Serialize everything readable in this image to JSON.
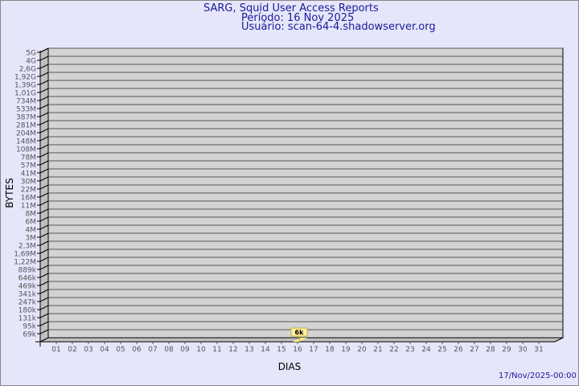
{
  "header": {
    "title": "SARG, Squid User Access Reports",
    "period": "Período: 16 Nov 2025",
    "user": "Usuário: scan-64-4.shadowserver.org"
  },
  "footer": {
    "generated": "17/Nov/2025-00:00"
  },
  "colors": {
    "background": "#e6e6fa",
    "wall": "#d3d3d3",
    "bar": "#ffe888",
    "title": "#1a1a9a"
  },
  "chart_data": {
    "type": "bar",
    "xlabel": "DIAS",
    "ylabel": "BYTES",
    "y_scale": "log",
    "y_tick_labels": [
      "5G",
      "4G",
      "2,6G",
      "1,92G",
      "1,39G",
      "1,01G",
      "734M",
      "533M",
      "387M",
      "281M",
      "204M",
      "148M",
      "108M",
      "78M",
      "57M",
      "41M",
      "30M",
      "22M",
      "16M",
      "11M",
      "8M",
      "6M",
      "4M",
      "3M",
      "2,3M",
      "1,69M",
      "1,22M",
      "889k",
      "646k",
      "469k",
      "341k",
      "247k",
      "180k",
      "131k",
      "95k",
      "69k"
    ],
    "categories": [
      "01",
      "02",
      "03",
      "04",
      "05",
      "06",
      "07",
      "08",
      "09",
      "10",
      "11",
      "12",
      "13",
      "14",
      "15",
      "16",
      "17",
      "18",
      "19",
      "20",
      "21",
      "22",
      "23",
      "24",
      "25",
      "26",
      "27",
      "28",
      "29",
      "30",
      "31"
    ],
    "values": [
      null,
      null,
      null,
      null,
      null,
      null,
      null,
      null,
      null,
      null,
      null,
      null,
      null,
      null,
      null,
      6000,
      null,
      null,
      null,
      null,
      null,
      null,
      null,
      null,
      null,
      null,
      null,
      null,
      null,
      null,
      null
    ],
    "data_labels": {
      "16": "6k"
    },
    "grid": true
  }
}
